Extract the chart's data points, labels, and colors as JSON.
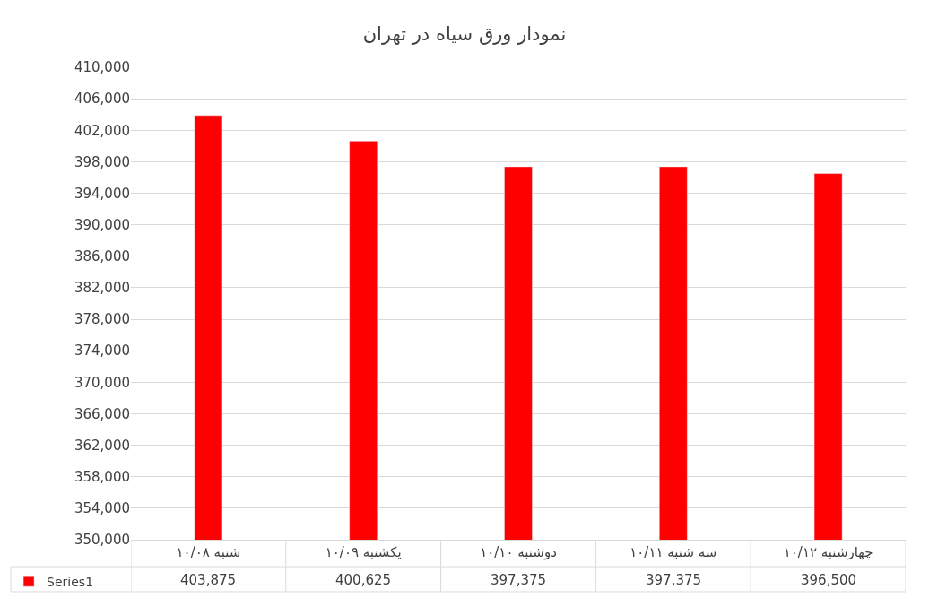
{
  "chart_data": {
    "type": "bar",
    "title": "نمودار ورق سیاه در تهران",
    "categories": [
      "شنبه ۱۰/۰۸",
      "یکشنبه ۱۰/۰۹",
      "دوشنبه ۱۰/۱۰",
      "سه شنبه ۱۰/۱۱",
      "چهارشنبه ۱۰/۱۲"
    ],
    "series": [
      {
        "name": "Series1",
        "color": "#ff0000",
        "values": [
          403875,
          400625,
          397375,
          397375,
          396500
        ],
        "value_labels": [
          "403,875",
          "400,625",
          "397,375",
          "397,375",
          "396,500"
        ]
      }
    ],
    "ylim": [
      350000,
      410000
    ],
    "yticks": [
      {
        "value": 350000,
        "label": "350,000"
      },
      {
        "value": 354000,
        "label": "354,000"
      },
      {
        "value": 358000,
        "label": "358,000"
      },
      {
        "value": 362000,
        "label": "362,000"
      },
      {
        "value": 366000,
        "label": "366,000"
      },
      {
        "value": 370000,
        "label": "370,000"
      },
      {
        "value": 374000,
        "label": "374,000"
      },
      {
        "value": 378000,
        "label": "378,000"
      },
      {
        "value": 382000,
        "label": "382,000"
      },
      {
        "value": 386000,
        "label": "386,000"
      },
      {
        "value": 390000,
        "label": "390,000"
      },
      {
        "value": 394000,
        "label": "394,000"
      },
      {
        "value": 398000,
        "label": "398,000"
      },
      {
        "value": 402000,
        "label": "402,000"
      },
      {
        "value": 406000,
        "label": "406,000"
      },
      {
        "value": 410000,
        "label": "410,000"
      }
    ],
    "grid": "y",
    "legend": "bottom left"
  }
}
